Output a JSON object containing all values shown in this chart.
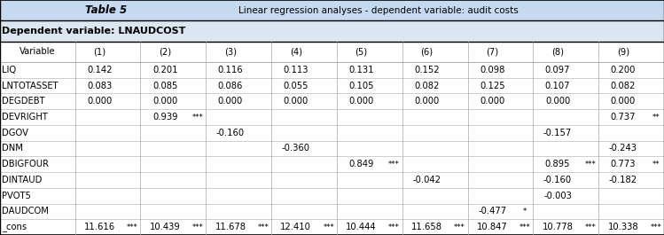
{
  "title_table": "Table 5",
  "title_desc": "Linear regression analyses - dependent variable: audit costs",
  "dep_var_label": "Dependent variable: LNAUDCOST",
  "col_headers": [
    "Variable",
    "(1)",
    "(2)",
    "(3)",
    "(4)",
    "(5)",
    "(6)",
    "(7)",
    "(8)",
    "(9)"
  ],
  "rows": [
    [
      "LIQ",
      "0.142",
      "",
      "0.201",
      "",
      "0.116",
      "",
      "0.113",
      "",
      "0.131",
      "",
      "0.152",
      "",
      "0.098",
      "",
      "0.097",
      "",
      "0.200",
      ""
    ],
    [
      "LNTOTASSET",
      "0.083",
      "",
      "0.085",
      "",
      "0.086",
      "",
      "0.055",
      "",
      "0.105",
      "",
      "0.082",
      "",
      "0.125",
      "",
      "0.107",
      "",
      "0.082",
      ""
    ],
    [
      "DEGDEBT",
      "0.000",
      "",
      "0.000",
      "",
      "0.000",
      "",
      "0.000",
      "",
      "0.000",
      "",
      "0.000",
      "",
      "0.000",
      "",
      "0.000",
      "",
      "0.000",
      ""
    ],
    [
      "DEVRIGHT",
      "",
      "",
      "0.939",
      "***",
      "",
      "",
      "",
      "",
      "",
      "",
      "",
      "",
      "",
      "",
      "",
      "",
      "0.737",
      "**"
    ],
    [
      "DGOV",
      "",
      "",
      "",
      "",
      "-0.160",
      "",
      "",
      "",
      "",
      "",
      "",
      "",
      "",
      "",
      "-0.157",
      "",
      "",
      ""
    ],
    [
      "DNM",
      "",
      "",
      "",
      "",
      "",
      "",
      "-0.360",
      "",
      "",
      "",
      "",
      "",
      "",
      "",
      "",
      "",
      "-0.243",
      ""
    ],
    [
      "DBIGFOUR",
      "",
      "",
      "",
      "",
      "",
      "",
      "",
      "",
      "0.849",
      "***",
      "",
      "",
      "",
      "",
      "0.895",
      "***",
      "0.773",
      "**"
    ],
    [
      "DINTAUD",
      "",
      "",
      "",
      "",
      "",
      "",
      "",
      "",
      "",
      "",
      "-0.042",
      "",
      "",
      "",
      "-0.160",
      "",
      "-0.182",
      ""
    ],
    [
      "PVOT5",
      "",
      "",
      "",
      "",
      "",
      "",
      "",
      "",
      "",
      "",
      "",
      "",
      "",
      "",
      "-0.003",
      "",
      "",
      ""
    ],
    [
      "DAUDCOM",
      "",
      "",
      "",
      "",
      "",
      "",
      "",
      "",
      "",
      "",
      "",
      "",
      "-0.477",
      "*",
      "",
      "",
      "",
      ""
    ],
    [
      "_cons",
      "11.616",
      "***",
      "10.439",
      "***",
      "11.678",
      "***",
      "12.410",
      "***",
      "10.444",
      "***",
      "11.658",
      "***",
      "10.847",
      "***",
      "10.778",
      "***",
      "10.338",
      "***"
    ]
  ],
  "background_header": "#c5d9f1",
  "background_dep_var": "#dce6f1",
  "line_color": "#aaaaaa",
  "text_color": "#000000",
  "font_size": 7.2,
  "header_font_size": 8.5
}
